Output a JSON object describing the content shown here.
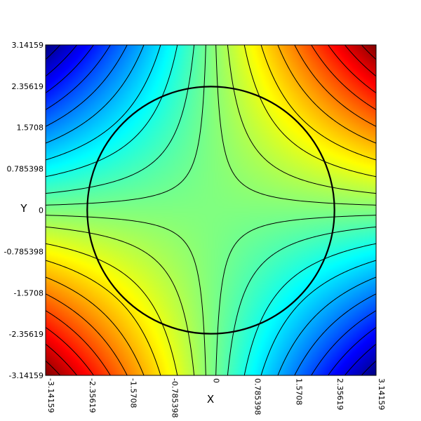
{
  "chart_data": {
    "type": "heatmap",
    "title": "",
    "xlabel": "X",
    "ylabel": "Y",
    "xlim": [
      -3.14159,
      3.14159
    ],
    "ylim": [
      -3.14159,
      3.14159
    ],
    "x_ticks": [
      {
        "value": -3.14159,
        "label": "-3.14159"
      },
      {
        "value": -2.35619,
        "label": "-2.35619"
      },
      {
        "value": -1.5708,
        "label": "-1.5708"
      },
      {
        "value": -0.785398,
        "label": "-0.785398"
      },
      {
        "value": 0,
        "label": "0"
      },
      {
        "value": 0.785398,
        "label": "0.785398"
      },
      {
        "value": 1.5708,
        "label": "1.5708"
      },
      {
        "value": 2.35619,
        "label": "2.35619"
      },
      {
        "value": 3.14159,
        "label": "3.14159"
      }
    ],
    "y_ticks": [
      {
        "value": 3.14159,
        "label": "3.14159"
      },
      {
        "value": 2.35619,
        "label": "2.35619"
      },
      {
        "value": 1.5708,
        "label": "1.5708"
      },
      {
        "value": 0.785398,
        "label": "0.785398"
      },
      {
        "value": 0,
        "label": "0"
      },
      {
        "value": -0.785398,
        "label": "-0.785398"
      },
      {
        "value": -1.5708,
        "label": "-1.5708"
      },
      {
        "value": -2.35619,
        "label": "-2.35619"
      },
      {
        "value": -3.14159,
        "label": "-3.14159"
      }
    ],
    "colormap": "jet",
    "color_stops": [
      "#800000",
      "#ff0000",
      "#ff8000",
      "#ffff00",
      "#80ff80",
      "#00ffff",
      "#0080ff",
      "#0000ff",
      "#000080"
    ],
    "field_range": [
      -9.8696,
      9.8696
    ],
    "contour_levels": [
      -9,
      -8,
      -7,
      -6,
      -5,
      -4,
      -3,
      -2,
      -1,
      -0.3,
      0.3,
      1,
      2,
      3,
      4,
      5,
      6,
      7,
      8,
      9
    ],
    "circle": {
      "center": [
        0,
        0
      ],
      "radius": 2.35
    }
  }
}
